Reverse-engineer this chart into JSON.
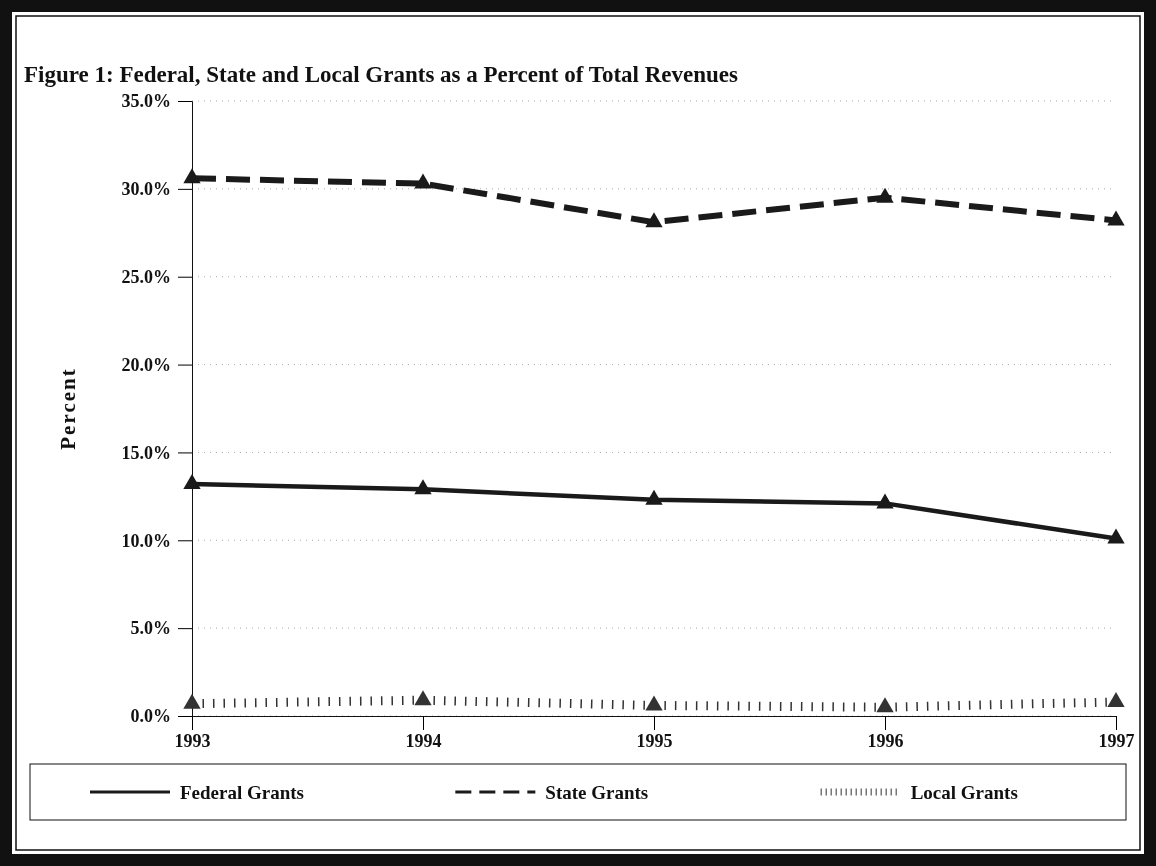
{
  "chart_data": {
    "type": "line",
    "title": "Figure 1:  Federal, State and Local Grants as a  Percent of Total Revenues",
    "ylabel": "Percent",
    "categories": [
      "1993",
      "1994",
      "1995",
      "1996",
      "1997"
    ],
    "series": [
      {
        "name": "Federal Grants",
        "color": "#1a1a1a",
        "values": [
          13.2,
          12.9,
          12.3,
          12.1,
          10.1
        ],
        "line_style": "solid"
      },
      {
        "name": "State Grants",
        "color": "#1a1a1a",
        "values": [
          30.6,
          30.3,
          28.1,
          29.5,
          28.2
        ],
        "line_style": "dashed"
      },
      {
        "name": "Local Grants",
        "color": "#333333",
        "values": [
          0.7,
          0.9,
          0.6,
          0.5,
          0.8
        ],
        "line_style": "dotted"
      }
    ],
    "ylim": [
      0,
      35
    ],
    "yticks": [
      {
        "value": 0,
        "label": "0.0%"
      },
      {
        "value": 5,
        "label": "5.0%"
      },
      {
        "value": 10,
        "label": "10.0%"
      },
      {
        "value": 15,
        "label": "15.0%"
      },
      {
        "value": 20,
        "label": "20.0%"
      },
      {
        "value": 25,
        "label": "25.0%"
      },
      {
        "value": 30,
        "label": "30.0%"
      },
      {
        "value": 35,
        "label": "35.0%"
      }
    ],
    "grid": "y",
    "legend": "bottom",
    "marker": "triangle"
  }
}
